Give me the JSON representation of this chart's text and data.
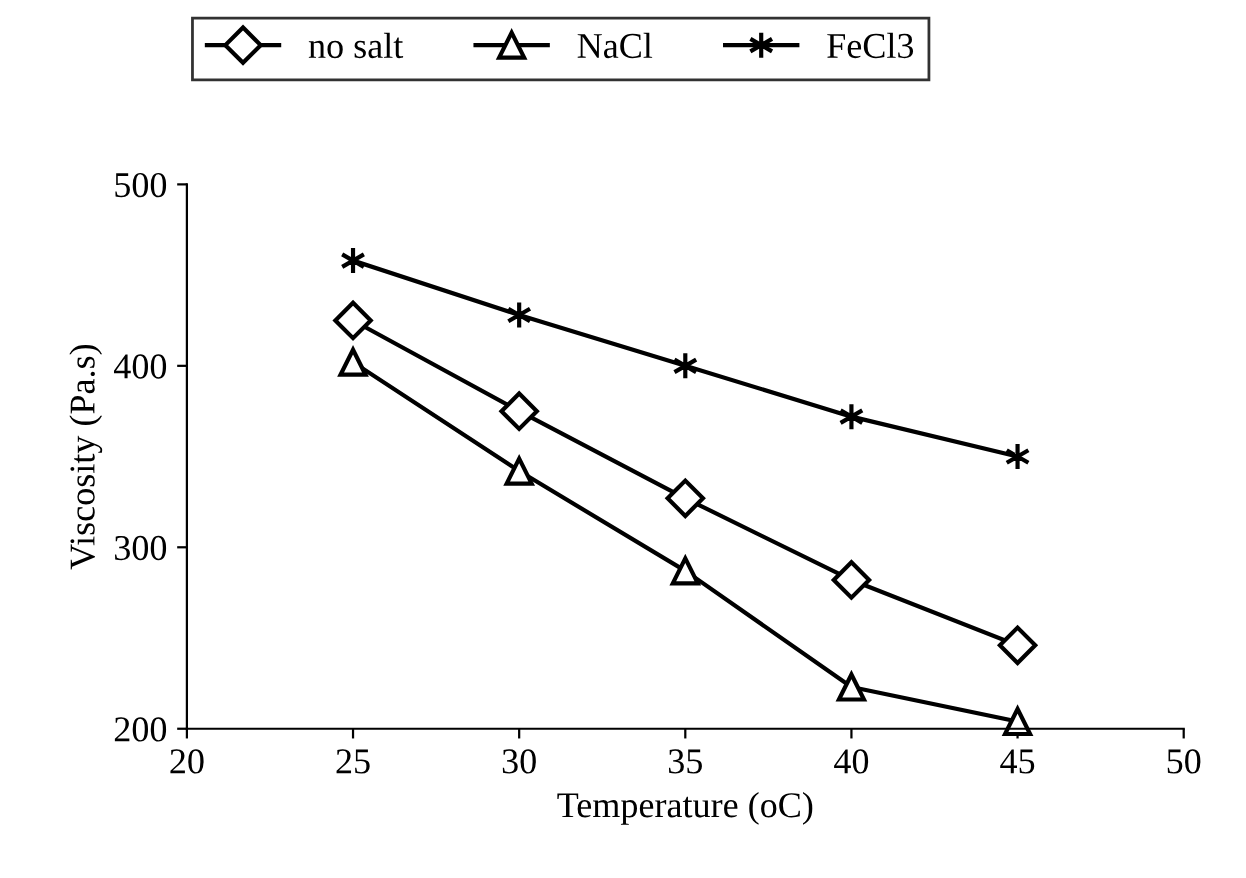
{
  "chart_data": {
    "type": "line",
    "xlabel": "Temperature (oC)",
    "ylabel": "Viscosity (Pa.s)",
    "x": [
      25,
      30,
      35,
      40,
      45
    ],
    "series": [
      {
        "name": "no salt",
        "color": "#000000",
        "marker": "diamond",
        "values": [
          425,
          375,
          327,
          282,
          246
        ]
      },
      {
        "name": "NaCl",
        "color": "#000000",
        "marker": "triangle",
        "values": [
          402,
          342,
          287,
          223,
          204
        ]
      },
      {
        "name": "FeCl3",
        "color": "#000000",
        "marker": "cross",
        "values": [
          458,
          428,
          400,
          372,
          350
        ]
      }
    ],
    "xlim": [
      20,
      50
    ],
    "xticks": [
      20,
      25,
      30,
      35,
      40,
      45,
      50
    ],
    "ylim": [
      200,
      500
    ],
    "yticks": [
      200,
      300,
      400,
      500
    ],
    "grid": false,
    "legend": "top",
    "line_style": "solid"
  }
}
